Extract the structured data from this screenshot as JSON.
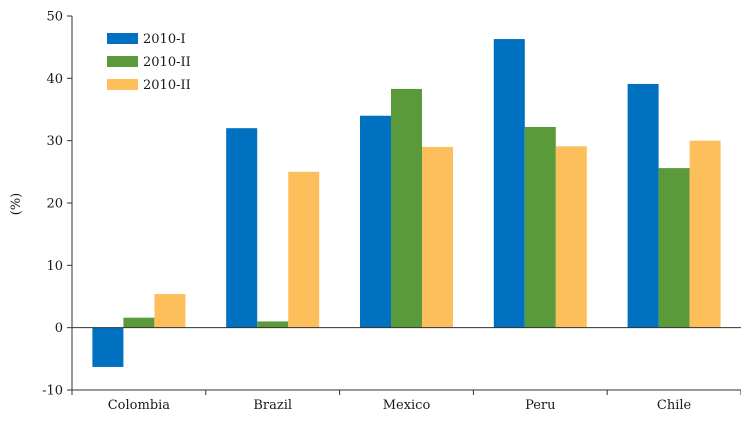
{
  "chart_data": {
    "type": "bar",
    "title": "",
    "xlabel": "",
    "ylabel": "(%)",
    "ylim": [
      -10,
      50
    ],
    "yticks": [
      -10,
      0,
      10,
      20,
      30,
      40,
      50
    ],
    "categories": [
      "Colombia",
      "Brazil",
      "Mexico",
      "Peru",
      "Chile"
    ],
    "series": [
      {
        "name": "2010-I",
        "color": "#0070C0",
        "values": [
          -6.3,
          32.0,
          34.0,
          46.3,
          39.1
        ]
      },
      {
        "name": "2010-II",
        "color": "#5B9A3A",
        "values": [
          1.6,
          1.0,
          38.3,
          32.2,
          25.6
        ]
      },
      {
        "name": "2010-II",
        "color": "#FDBF5B",
        "values": [
          5.4,
          25.0,
          29.0,
          29.1,
          30.0
        ]
      }
    ],
    "legend_position": "top-left",
    "grid": false
  }
}
